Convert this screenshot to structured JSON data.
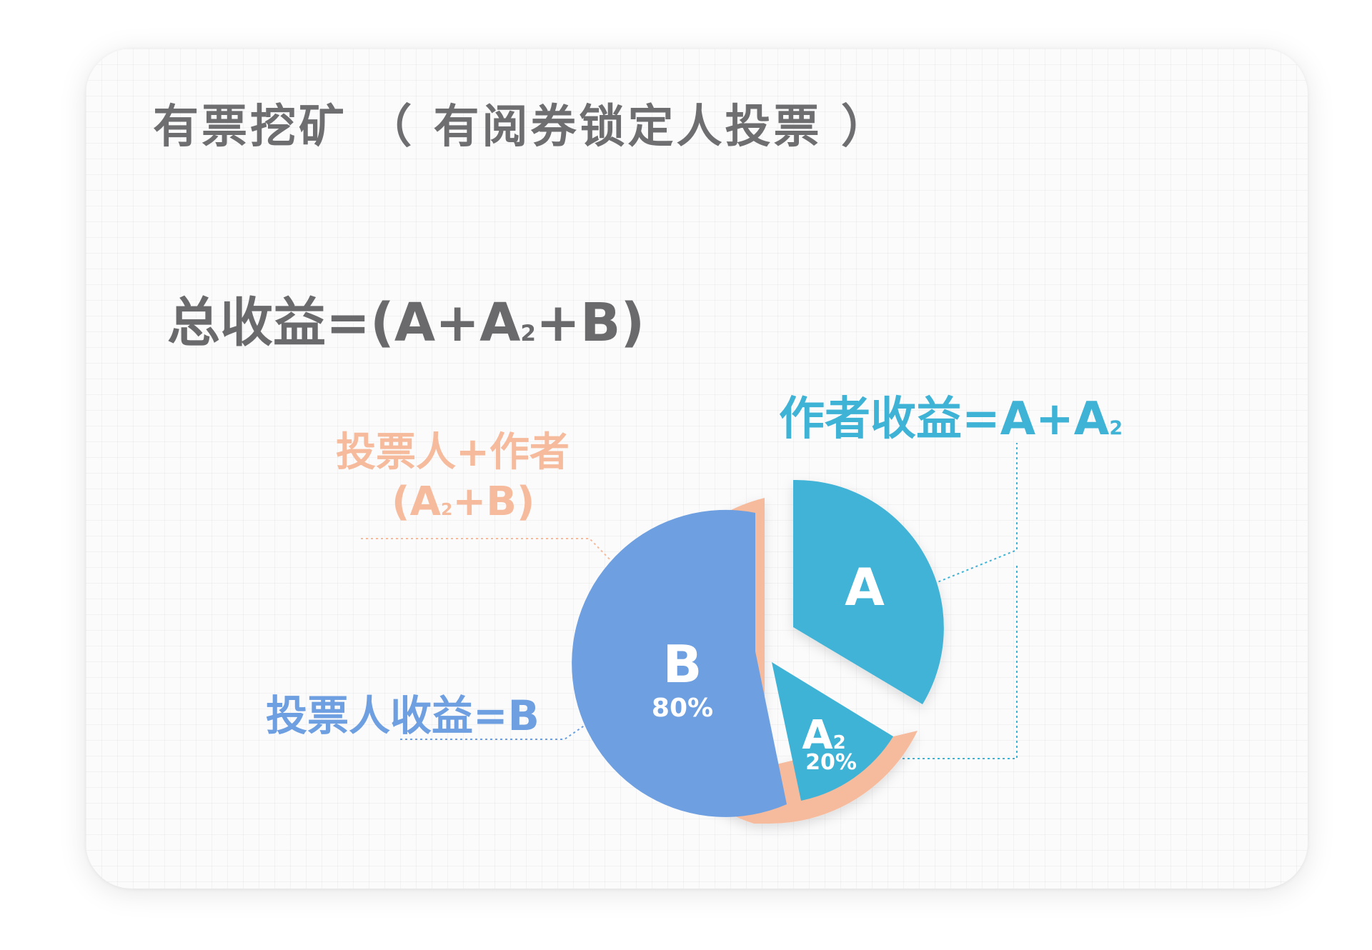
{
  "title": "有票挖矿  （ 有阅券锁定人投票 ）",
  "formula": {
    "prefix": "总收益=(A+A",
    "sub": "2",
    "suffix": "+B)"
  },
  "labels": {
    "author": {
      "prefix": "作者收益=A+A",
      "sub": "2"
    },
    "voter_author_line1": "投票人+作者",
    "voter_author_line2": {
      "prefix": "(A",
      "sub": "2",
      "suffix": "+B)"
    },
    "voter": "投票人收益=B"
  },
  "colors": {
    "author": "#3fb3d6",
    "voter": "#6e9fe0",
    "mix": "#f6bb9c",
    "text": "#6a6a6c"
  },
  "chart_data": {
    "type": "pie",
    "title": "有票挖矿  （ 有阅券锁定人投票 ）",
    "slices": [
      {
        "name": "A",
        "label": "A",
        "percent": null,
        "value": 35
      },
      {
        "name": "A2",
        "label": "A",
        "sub": "2",
        "percent": "20%",
        "value": 13
      },
      {
        "name": "B",
        "label": "B",
        "percent": "80%",
        "value": 52
      }
    ]
  }
}
